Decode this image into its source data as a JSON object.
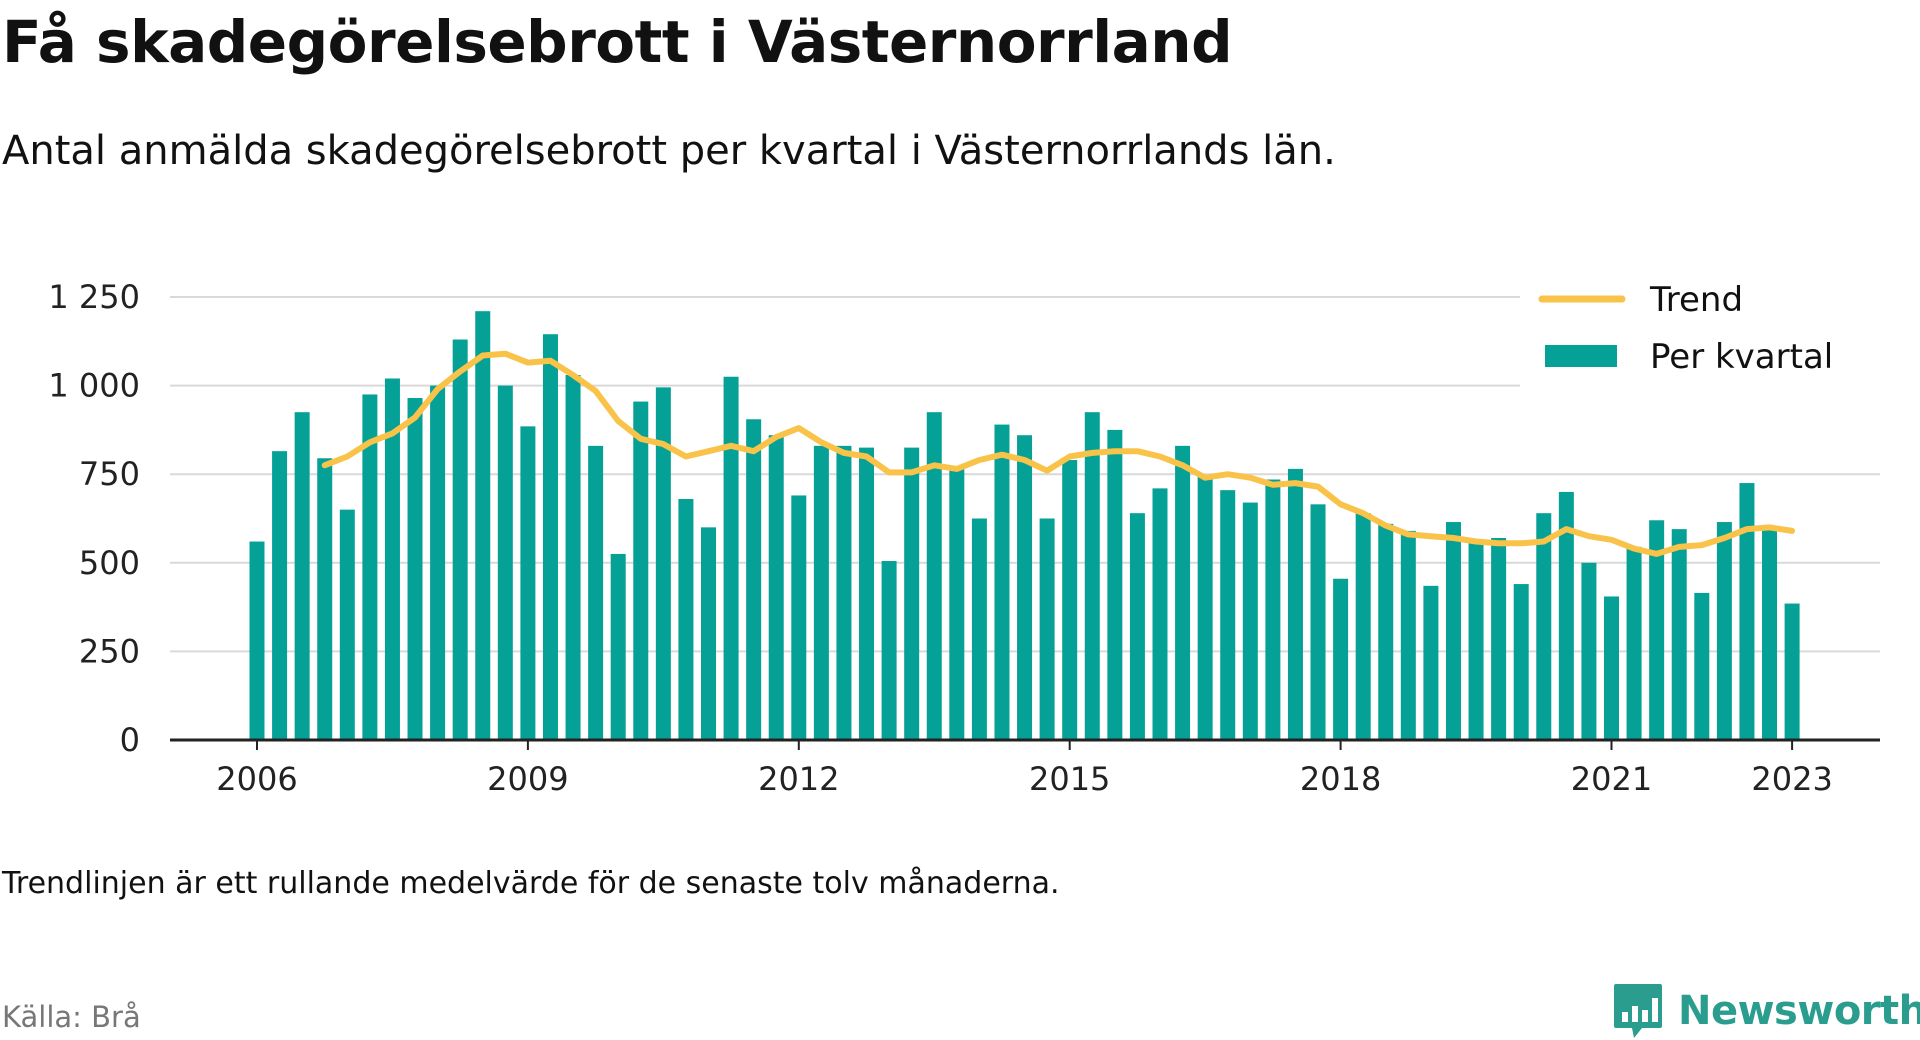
{
  "title": "Få skadegörelsebrott i Västernorrland",
  "subtitle": "Antal anmälda skadegörelsebrott per kvartal i Västernorrlands län.",
  "footnote": "Trendlinjen är ett rullande medelvärde för de senaste tolv månaderna.",
  "source": "Källa: Brå",
  "brand": "Newsworthy",
  "colors": {
    "bar": "#05a196",
    "trend": "#f9c34a",
    "grid": "#d9d9d9",
    "axis": "#222222"
  },
  "chart_data": {
    "type": "bar",
    "x_unit": "quarter",
    "ylim": [
      0,
      1250
    ],
    "yticks": [
      0,
      250,
      500,
      750,
      1000,
      1250
    ],
    "ytick_labels": [
      "0",
      "250",
      "500",
      "750",
      "1 000",
      "1 250"
    ],
    "xticks": [
      2006,
      2009,
      2012,
      2015,
      2018,
      2021,
      2023
    ],
    "xtick_labels": [
      "2006",
      "2009",
      "2012",
      "2015",
      "2018",
      "2021",
      "2023"
    ],
    "grid": true,
    "legend_position": "top-right",
    "series": [
      {
        "name": "Per kvartal",
        "type": "bar",
        "categories": [
          "2006 Q1",
          "2006 Q2",
          "2006 Q3",
          "2006 Q4",
          "2007 Q1",
          "2007 Q2",
          "2007 Q3",
          "2007 Q4",
          "2008 Q1",
          "2008 Q2",
          "2008 Q3",
          "2008 Q4",
          "2009 Q1",
          "2009 Q2",
          "2009 Q3",
          "2009 Q4",
          "2010 Q1",
          "2010 Q2",
          "2010 Q3",
          "2010 Q4",
          "2011 Q1",
          "2011 Q2",
          "2011 Q3",
          "2011 Q4",
          "2012 Q1",
          "2012 Q2",
          "2012 Q3",
          "2012 Q4",
          "2013 Q1",
          "2013 Q2",
          "2013 Q3",
          "2013 Q4",
          "2014 Q1",
          "2014 Q2",
          "2014 Q3",
          "2014 Q4",
          "2015 Q1",
          "2015 Q2",
          "2015 Q3",
          "2015 Q4",
          "2016 Q1",
          "2016 Q2",
          "2016 Q3",
          "2016 Q4",
          "2017 Q1",
          "2017 Q2",
          "2017 Q3",
          "2017 Q4",
          "2018 Q1",
          "2018 Q2",
          "2018 Q3",
          "2018 Q4",
          "2019 Q1",
          "2019 Q2",
          "2019 Q3",
          "2019 Q4",
          "2020 Q1",
          "2020 Q2",
          "2020 Q3",
          "2020 Q4",
          "2021 Q1",
          "2021 Q2",
          "2021 Q3",
          "2021 Q4",
          "2022 Q1",
          "2022 Q2",
          "2022 Q3",
          "2022 Q4",
          "2023 Q1"
        ],
        "values": [
          560,
          815,
          925,
          795,
          650,
          975,
          1020,
          965,
          1000,
          1130,
          1210,
          1000,
          885,
          1145,
          1030,
          830,
          525,
          955,
          995,
          680,
          600,
          1025,
          905,
          860,
          690,
          830,
          830,
          825,
          505,
          825,
          925,
          765,
          625,
          890,
          860,
          625,
          790,
          925,
          875,
          640,
          710,
          830,
          745,
          705,
          670,
          735,
          765,
          665,
          455,
          640,
          610,
          590,
          435,
          615,
          555,
          570,
          440,
          640,
          700,
          500,
          405,
          545,
          620,
          595,
          415,
          615,
          725,
          605,
          385
        ]
      },
      {
        "name": "Trend",
        "type": "line",
        "x_start": "2006 Q4",
        "values": [
          775,
          800,
          840,
          865,
          910,
          990,
          1040,
          1085,
          1090,
          1065,
          1070,
          1030,
          985,
          900,
          850,
          835,
          800,
          815,
          830,
          815,
          855,
          880,
          840,
          810,
          800,
          755,
          755,
          775,
          765,
          790,
          805,
          790,
          760,
          800,
          810,
          815,
          815,
          800,
          775,
          740,
          750,
          740,
          720,
          725,
          715,
          665,
          640,
          605,
          580,
          575,
          570,
          560,
          555,
          555,
          560,
          595,
          575,
          565,
          540,
          525,
          545,
          550,
          570,
          595,
          600,
          590
        ]
      }
    ]
  }
}
